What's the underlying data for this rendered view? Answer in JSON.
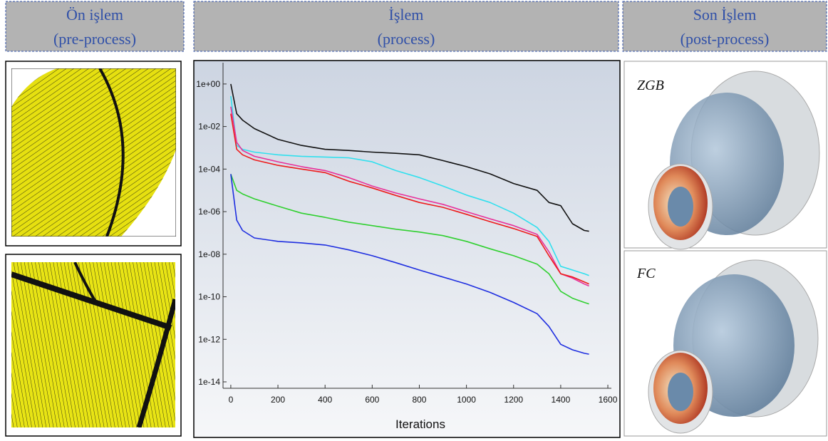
{
  "headers": [
    {
      "title": "Ön işlem",
      "subtitle": "(pre-process)"
    },
    {
      "title": "İşlem",
      "subtitle": "(process)"
    },
    {
      "title": "Son İşlem",
      "subtitle": "(post-process)"
    }
  ],
  "post_labels": [
    "ZGB",
    "FC"
  ],
  "chart_data": {
    "type": "line",
    "xlabel": "Iterations",
    "log_y": true,
    "xlim": [
      -33,
      1615
    ],
    "ylim": [
      1e-14,
      10
    ],
    "xticks": [
      0,
      200,
      400,
      600,
      800,
      1000,
      1200,
      1400,
      1600
    ],
    "yticks": [
      {
        "value": 1,
        "label": "1e+00"
      },
      {
        "value": 0.01,
        "label": "1e-02"
      },
      {
        "value": 0.0001,
        "label": "1e-04"
      },
      {
        "value": 1e-06,
        "label": "1e-06"
      },
      {
        "value": 1e-08,
        "label": "1e-08"
      },
      {
        "value": 1e-10,
        "label": "1e-10"
      },
      {
        "value": 1e-12,
        "label": "1e-12"
      },
      {
        "value": 1e-14,
        "label": "1e-14"
      }
    ],
    "x": [
      0,
      25,
      50,
      100,
      200,
      300,
      400,
      500,
      600,
      700,
      800,
      900,
      1000,
      1100,
      1200,
      1300,
      1350,
      1400,
      1450,
      1500,
      1520
    ],
    "series": [
      {
        "color": "#111111",
        "values": [
          1,
          0.04,
          0.02,
          0.008,
          0.0025,
          0.0013,
          0.00085,
          0.00075,
          0.00063,
          0.00055,
          0.00047,
          0.00025,
          0.00013,
          6e-05,
          2.1e-05,
          1e-05,
          2.7e-06,
          1.9e-06,
          2.7e-07,
          1.3e-07,
          1.2e-07
        ]
      },
      {
        "color": "#30e0ee",
        "values": [
          0.27,
          0.0013,
          0.00085,
          0.00063,
          0.00047,
          0.0004,
          0.00037,
          0.00034,
          0.00022,
          8.5e-05,
          4e-05,
          1.6e-05,
          6e-06,
          2.7e-06,
          8.5e-07,
          1.8e-07,
          4e-08,
          2.7e-09,
          1.8e-09,
          1.2e-09,
          1e-09
        ]
      },
      {
        "color": "#e8309a",
        "values": [
          0.085,
          0.0018,
          0.00075,
          0.0004,
          0.00022,
          0.00013,
          8.5e-05,
          4e-05,
          1.6e-05,
          7.5e-06,
          4e-06,
          2.2e-06,
          1e-06,
          4.6e-07,
          2.2e-07,
          8.5e-08,
          1.3e-08,
          1.2e-09,
          7.5e-10,
          4e-10,
          3.2e-10
        ]
      },
      {
        "color": "#ee1c1c",
        "values": [
          0.04,
          0.00085,
          0.00047,
          0.00027,
          0.00015,
          0.0001,
          6.8e-05,
          2.7e-05,
          1.3e-05,
          5.8e-06,
          2.7e-06,
          1.6e-06,
          7.5e-07,
          3.4e-07,
          1.6e-07,
          6.8e-08,
          8.5e-09,
          1.2e-09,
          8.5e-10,
          5e-10,
          4e-10
        ]
      },
      {
        "color": "#30d030",
        "values": [
          5.8e-05,
          1e-05,
          6.8e-06,
          4e-06,
          1.8e-06,
          8.5e-07,
          5.4e-07,
          3.2e-07,
          2.2e-07,
          1.5e-07,
          1.1e-07,
          7.5e-08,
          4e-08,
          1.8e-08,
          8.5e-09,
          3.4e-09,
          1.2e-09,
          1.8e-10,
          8.5e-11,
          5.4e-11,
          4.6e-11
        ]
      },
      {
        "color": "#1e2ee0",
        "values": [
          5.8e-05,
          4e-07,
          1.3e-07,
          5.8e-08,
          4e-08,
          3.4e-08,
          2.7e-08,
          1.6e-08,
          8.5e-09,
          4e-09,
          1.8e-09,
          8.5e-10,
          4e-10,
          1.6e-10,
          5.4e-11,
          1.6e-11,
          4e-12,
          5.8e-13,
          3.2e-13,
          2.2e-13,
          2e-13
        ]
      }
    ]
  }
}
